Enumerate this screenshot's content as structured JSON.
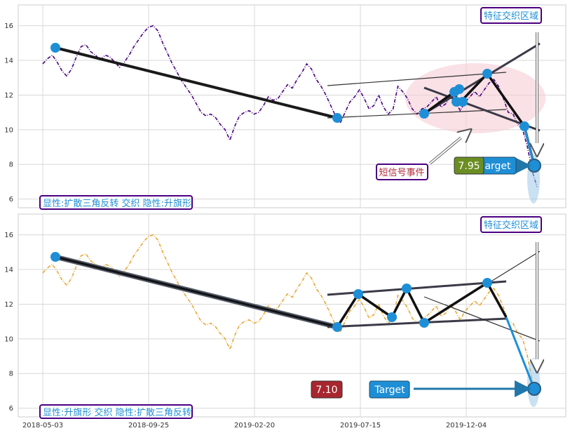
{
  "chart_data": [
    {
      "type": "line",
      "panel": "top",
      "ylim": [
        5.5,
        17.2
      ],
      "y_ticks": [
        "6",
        "8",
        "10",
        "12",
        "14",
        "16"
      ],
      "line_color": "#4b0082",
      "series": [
        {
          "values": [
            13.8,
            14.1,
            14.3,
            13.9,
            13.4,
            13.1,
            13.5,
            14.2,
            14.8,
            14.9,
            14.5,
            14.3,
            14.0,
            14.3,
            14.2,
            13.9,
            13.6,
            13.9,
            14.3,
            14.8,
            15.2,
            15.6,
            15.9,
            16.0,
            15.7,
            15.0,
            14.4,
            13.8,
            13.3,
            12.8,
            12.4,
            12.0,
            11.5,
            11.0,
            10.8,
            10.9,
            10.7,
            10.3,
            10.0,
            9.4,
            10.2,
            10.8,
            11.0,
            11.1,
            10.9,
            11.0,
            11.4,
            11.9,
            11.7,
            11.8,
            12.2,
            12.6,
            12.4,
            12.9,
            13.3,
            13.8,
            13.5,
            12.9,
            12.5,
            12.0,
            11.4,
            10.8,
            10.4,
            11.0,
            11.6,
            11.9,
            12.3,
            11.8,
            11.2,
            11.4,
            12.0,
            11.3,
            10.9,
            11.2,
            12.5,
            12.2,
            11.8,
            11.2,
            10.9,
            11.2,
            11.3,
            11.6,
            11.9,
            11.3,
            11.5,
            12.0,
            11.6,
            11.1,
            11.6,
            11.9,
            12.2,
            11.9,
            12.3,
            12.7,
            12.9,
            12.5,
            11.8,
            11.0,
            10.9,
            10.3,
            10.0,
            9.0,
            7.6,
            6.7
          ]
        }
      ],
      "ellipse_color": "#f5cdd5",
      "annotations": {
        "badge_feature": "特征交织区域",
        "badge_signal": "短信号事件",
        "price_label": "7.95",
        "target_label": "arget",
        "pattern_text": "显性:扩散三角反转 交织 隐性:升旗形"
      }
    },
    {
      "type": "line",
      "panel": "bottom",
      "ylim": [
        5.5,
        17.2
      ],
      "y_ticks": [
        "6",
        "8",
        "10",
        "12",
        "14",
        "16"
      ],
      "x_ticks": [
        "2018-05-03",
        "2018-09-25",
        "2019-02-20",
        "2019-07-15",
        "2019-12-04"
      ],
      "line_color": "#e8a838",
      "series": [
        {
          "values": [
            13.8,
            14.1,
            14.3,
            13.9,
            13.4,
            13.1,
            13.5,
            14.2,
            14.8,
            14.9,
            14.5,
            14.3,
            14.0,
            14.3,
            14.2,
            13.9,
            13.6,
            13.9,
            14.3,
            14.8,
            15.2,
            15.6,
            15.9,
            16.0,
            15.7,
            15.0,
            14.4,
            13.8,
            13.3,
            12.8,
            12.4,
            12.0,
            11.5,
            11.0,
            10.8,
            10.9,
            10.7,
            10.3,
            10.0,
            9.4,
            10.2,
            10.8,
            11.0,
            11.1,
            10.9,
            11.0,
            11.4,
            11.9,
            11.7,
            11.8,
            12.2,
            12.6,
            12.4,
            12.9,
            13.3,
            13.8,
            13.5,
            12.9,
            12.5,
            12.0,
            11.4,
            10.8,
            10.4,
            11.0,
            11.6,
            11.9,
            12.3,
            11.8,
            11.2,
            11.4,
            12.0,
            11.3,
            10.9,
            11.2,
            12.5,
            12.2,
            11.8,
            11.2,
            10.9,
            11.2,
            11.3,
            11.6,
            11.9,
            11.3,
            11.5,
            12.0,
            11.6,
            11.1,
            11.6,
            11.9,
            12.2,
            11.9,
            12.3,
            12.7,
            12.9,
            12.5,
            11.8,
            11.0,
            10.9,
            10.3,
            10.0,
            9.0,
            7.6,
            6.7
          ]
        }
      ],
      "annotations": {
        "badge_feature": "特征交织区域",
        "price_label": "7.10",
        "target_label": "Target",
        "pattern_text": "显性:升旗形 交织 隐性:扩散三角反转"
      }
    }
  ]
}
